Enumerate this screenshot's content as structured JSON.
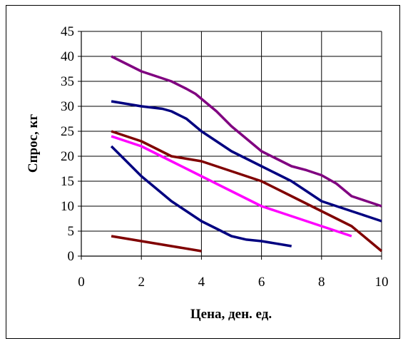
{
  "chart_data": {
    "type": "line",
    "title": "",
    "xlabel": "Цена, ден. ед.",
    "ylabel": "Спрос, кг",
    "xlim": [
      0,
      10
    ],
    "ylim": [
      0,
      45
    ],
    "x_ticks": [
      0,
      2,
      4,
      6,
      8,
      10
    ],
    "y_ticks": [
      0,
      5,
      10,
      15,
      20,
      25,
      30,
      35,
      40,
      45
    ],
    "grid": true,
    "legend": "none",
    "axis_color": "#000000",
    "grid_color": "#000000",
    "series": [
      {
        "color": "#800080",
        "points": [
          [
            1,
            40
          ],
          [
            1.5,
            38.5
          ],
          [
            2,
            37
          ],
          [
            2.5,
            36
          ],
          [
            3,
            35
          ],
          [
            3.5,
            33.5
          ],
          [
            3.8,
            32.5
          ],
          [
            4,
            31.5
          ],
          [
            4.5,
            29
          ],
          [
            5,
            26
          ],
          [
            5.5,
            23.5
          ],
          [
            6,
            21
          ],
          [
            6.5,
            19.5
          ],
          [
            7,
            18
          ],
          [
            7.5,
            17.2
          ],
          [
            8,
            16.2
          ],
          [
            8.5,
            14.5
          ],
          [
            9,
            12
          ],
          [
            9.5,
            11
          ],
          [
            10,
            10
          ]
        ]
      },
      {
        "color": "#000080",
        "points": [
          [
            1,
            31
          ],
          [
            2,
            30
          ],
          [
            2.7,
            29.5
          ],
          [
            3,
            29
          ],
          [
            3.5,
            27.5
          ],
          [
            4,
            25
          ],
          [
            4.5,
            23
          ],
          [
            5,
            21
          ],
          [
            5.5,
            19.5
          ],
          [
            6,
            18
          ],
          [
            6.5,
            16.5
          ],
          [
            7,
            15
          ],
          [
            7.5,
            13
          ],
          [
            8,
            11
          ],
          [
            8.5,
            10
          ],
          [
            9,
            9
          ],
          [
            9.5,
            8
          ],
          [
            10,
            7
          ]
        ]
      },
      {
        "color": "#800000",
        "points": [
          [
            1,
            25
          ],
          [
            2,
            23
          ],
          [
            2.5,
            21.5
          ],
          [
            3,
            20
          ],
          [
            3.5,
            19.5
          ],
          [
            4,
            19
          ],
          [
            5,
            17
          ],
          [
            6,
            15
          ],
          [
            7,
            12
          ],
          [
            8,
            9
          ],
          [
            9,
            6
          ],
          [
            9.5,
            3.5
          ],
          [
            10,
            1
          ]
        ]
      },
      {
        "color": "#ff00ff",
        "points": [
          [
            1,
            24
          ],
          [
            2,
            22
          ],
          [
            3,
            19
          ],
          [
            4,
            16
          ],
          [
            5,
            13
          ],
          [
            6,
            10
          ],
          [
            6.5,
            9
          ],
          [
            7,
            8
          ],
          [
            8,
            6
          ],
          [
            9,
            4
          ]
        ]
      },
      {
        "color": "#000080",
        "points": [
          [
            1,
            22
          ],
          [
            1.5,
            19
          ],
          [
            2,
            16
          ],
          [
            2.5,
            13.5
          ],
          [
            3,
            11
          ],
          [
            3.5,
            9
          ],
          [
            4,
            7
          ],
          [
            4.5,
            5.5
          ],
          [
            5,
            4
          ],
          [
            5.5,
            3.3
          ],
          [
            6,
            3
          ],
          [
            7,
            2
          ]
        ]
      },
      {
        "color": "#800000",
        "points": [
          [
            1,
            4
          ],
          [
            2,
            3
          ],
          [
            3,
            2
          ],
          [
            4,
            1
          ]
        ]
      }
    ]
  }
}
